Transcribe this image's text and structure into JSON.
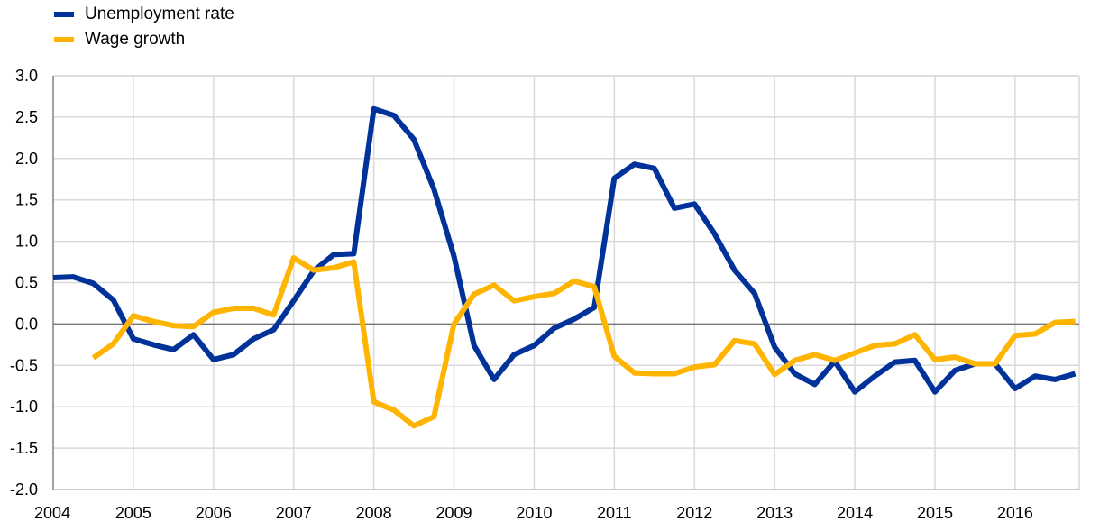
{
  "chart_data": {
    "type": "line",
    "title": "",
    "xlabel": "",
    "ylabel": "",
    "x_ticks": [
      "2004",
      "2005",
      "2006",
      "2007",
      "2008",
      "2009",
      "2010",
      "2011",
      "2012",
      "2013",
      "2014",
      "2015",
      "2016"
    ],
    "y_ticks": [
      "3.0",
      "2.5",
      "2.0",
      "1.5",
      "1.0",
      "0.5",
      "0.0",
      "-0.5",
      "-1.0",
      "-1.5",
      "-2.0"
    ],
    "xlim": [
      2004.0,
      2016.8
    ],
    "ylim": [
      -2.0,
      3.0
    ],
    "grid": true,
    "legend_position": "top-left",
    "series": [
      {
        "name": "Unemployment rate",
        "color": "#003299",
        "points": [
          [
            2004.0,
            0.56
          ],
          [
            2004.25,
            0.57
          ],
          [
            2004.5,
            0.49
          ],
          [
            2004.75,
            0.29
          ],
          [
            2005.0,
            -0.18
          ],
          [
            2005.25,
            -0.25
          ],
          [
            2005.5,
            -0.31
          ],
          [
            2005.75,
            -0.13
          ],
          [
            2006.0,
            -0.43
          ],
          [
            2006.25,
            -0.37
          ],
          [
            2006.5,
            -0.18
          ],
          [
            2006.75,
            -0.07
          ],
          [
            2007.0,
            0.28
          ],
          [
            2007.25,
            0.64
          ],
          [
            2007.5,
            0.84
          ],
          [
            2007.75,
            0.85
          ],
          [
            2008.0,
            2.6
          ],
          [
            2008.25,
            2.52
          ],
          [
            2008.5,
            2.23
          ],
          [
            2008.75,
            1.63
          ],
          [
            2009.0,
            0.82
          ],
          [
            2009.25,
            -0.26
          ],
          [
            2009.5,
            -0.67
          ],
          [
            2009.75,
            -0.37
          ],
          [
            2010.0,
            -0.26
          ],
          [
            2010.25,
            -0.05
          ],
          [
            2010.5,
            0.06
          ],
          [
            2010.75,
            0.2
          ],
          [
            2011.0,
            1.76
          ],
          [
            2011.25,
            1.93
          ],
          [
            2011.5,
            1.88
          ],
          [
            2011.75,
            1.4
          ],
          [
            2012.0,
            1.45
          ],
          [
            2012.25,
            1.09
          ],
          [
            2012.5,
            0.65
          ],
          [
            2012.75,
            0.37
          ],
          [
            2013.0,
            -0.28
          ],
          [
            2013.25,
            -0.6
          ],
          [
            2013.5,
            -0.73
          ],
          [
            2013.75,
            -0.45
          ],
          [
            2014.0,
            -0.82
          ],
          [
            2014.25,
            -0.63
          ],
          [
            2014.5,
            -0.46
          ],
          [
            2014.75,
            -0.44
          ],
          [
            2015.0,
            -0.82
          ],
          [
            2015.25,
            -0.56
          ],
          [
            2015.5,
            -0.48
          ],
          [
            2015.75,
            -0.48
          ],
          [
            2016.0,
            -0.78
          ],
          [
            2016.25,
            -0.63
          ],
          [
            2016.5,
            -0.67
          ],
          [
            2016.75,
            -0.6
          ]
        ]
      },
      {
        "name": "Wage growth",
        "color": "#FFB400",
        "points": [
          [
            2004.5,
            -0.41
          ],
          [
            2004.75,
            -0.24
          ],
          [
            2005.0,
            0.1
          ],
          [
            2005.25,
            0.03
          ],
          [
            2005.5,
            -0.02
          ],
          [
            2005.75,
            -0.03
          ],
          [
            2006.0,
            0.14
          ],
          [
            2006.25,
            0.19
          ],
          [
            2006.5,
            0.19
          ],
          [
            2006.75,
            0.11
          ],
          [
            2007.0,
            0.8
          ],
          [
            2007.25,
            0.65
          ],
          [
            2007.5,
            0.68
          ],
          [
            2007.75,
            0.75
          ],
          [
            2008.0,
            -0.94
          ],
          [
            2008.25,
            -1.04
          ],
          [
            2008.5,
            -1.23
          ],
          [
            2008.75,
            -1.12
          ],
          [
            2009.0,
            0.0
          ],
          [
            2009.25,
            0.36
          ],
          [
            2009.5,
            0.47
          ],
          [
            2009.75,
            0.28
          ],
          [
            2010.0,
            0.33
          ],
          [
            2010.25,
            0.37
          ],
          [
            2010.5,
            0.52
          ],
          [
            2010.75,
            0.45
          ],
          [
            2011.0,
            -0.39
          ],
          [
            2011.25,
            -0.59
          ],
          [
            2011.5,
            -0.6
          ],
          [
            2011.75,
            -0.6
          ],
          [
            2012.0,
            -0.52
          ],
          [
            2012.25,
            -0.49
          ],
          [
            2012.5,
            -0.2
          ],
          [
            2012.75,
            -0.24
          ],
          [
            2013.0,
            -0.61
          ],
          [
            2013.25,
            -0.44
          ],
          [
            2013.5,
            -0.37
          ],
          [
            2013.75,
            -0.44
          ],
          [
            2014.0,
            -0.35
          ],
          [
            2014.25,
            -0.26
          ],
          [
            2014.5,
            -0.24
          ],
          [
            2014.75,
            -0.13
          ],
          [
            2015.0,
            -0.43
          ],
          [
            2015.25,
            -0.4
          ],
          [
            2015.5,
            -0.48
          ],
          [
            2015.75,
            -0.48
          ],
          [
            2016.0,
            -0.14
          ],
          [
            2016.25,
            -0.12
          ],
          [
            2016.5,
            0.02
          ],
          [
            2016.75,
            0.03
          ]
        ]
      }
    ]
  }
}
